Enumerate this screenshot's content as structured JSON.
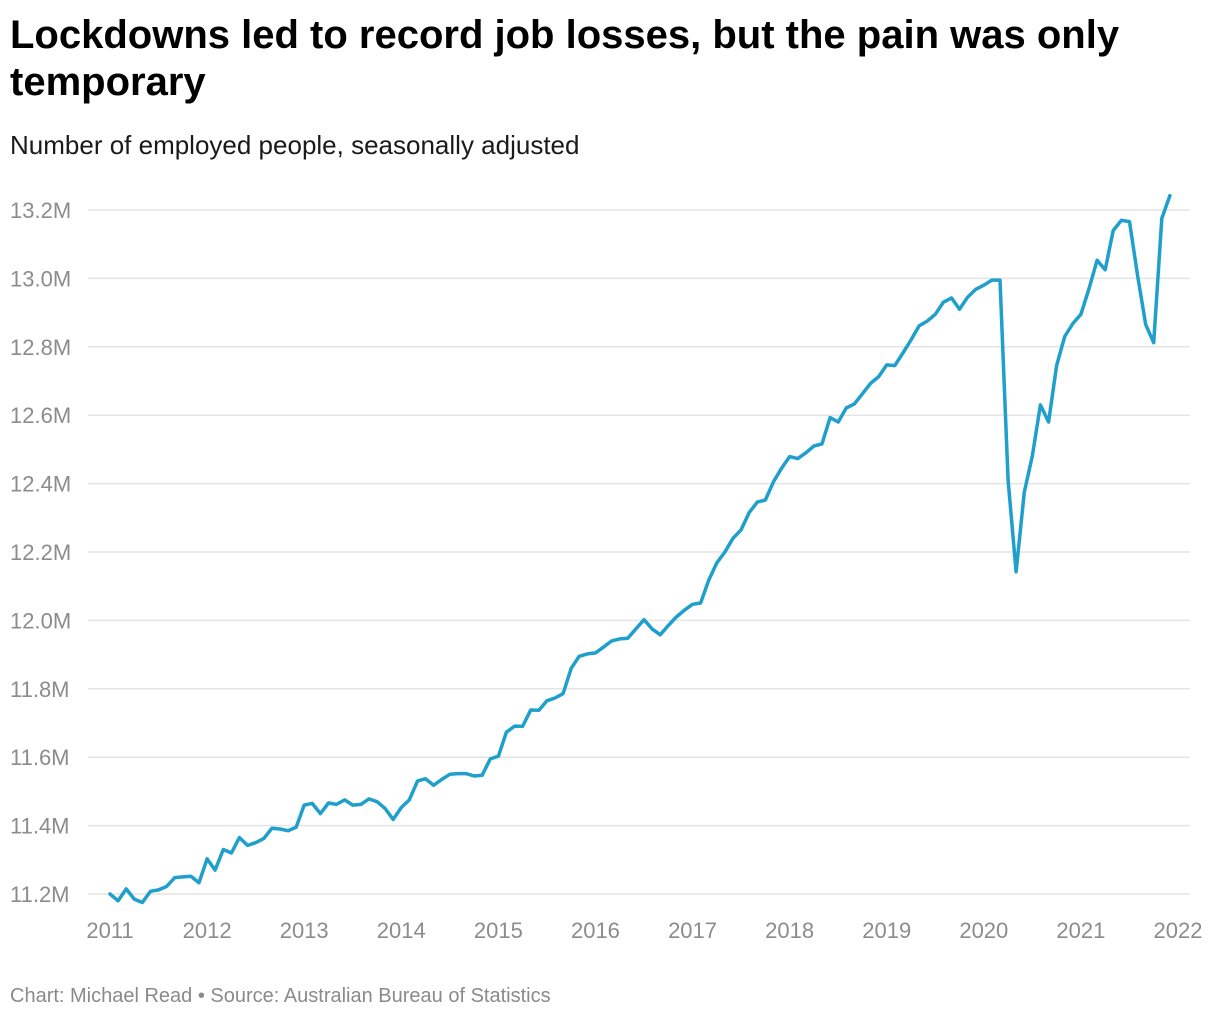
{
  "header": {
    "title": "Lockdowns led to record job losses, but the pain was only temporary",
    "subtitle": "Number of employed people, seasonally adjusted"
  },
  "footer": {
    "text": "Chart: Michael Read • Source: Australian Bureau of Statistics"
  },
  "colors": {
    "line": "#1f9fcb",
    "grid": "#e4e4e4",
    "tick": "#8c8c8c"
  },
  "chart_data": {
    "type": "line",
    "title": "Lockdowns led to record job losses, but the pain was only temporary",
    "subtitle": "Number of employed people, seasonally adjusted",
    "xlabel": "",
    "ylabel": "",
    "unit": "millions of employed people",
    "xlim": [
      2011,
      2022
    ],
    "ylim": [
      11.2,
      13.2
    ],
    "grid": true,
    "x_ticks": [
      {
        "value": 2011,
        "label": "2011"
      },
      {
        "value": 2012,
        "label": "2012"
      },
      {
        "value": 2013,
        "label": "2013"
      },
      {
        "value": 2014,
        "label": "2014"
      },
      {
        "value": 2015,
        "label": "2015"
      },
      {
        "value": 2016,
        "label": "2016"
      },
      {
        "value": 2017,
        "label": "2017"
      },
      {
        "value": 2018,
        "label": "2018"
      },
      {
        "value": 2019,
        "label": "2019"
      },
      {
        "value": 2020,
        "label": "2020"
      },
      {
        "value": 2021,
        "label": "2021"
      },
      {
        "value": 2022,
        "label": "2022"
      }
    ],
    "y_ticks": [
      {
        "value": 11.2,
        "label": "11.2M"
      },
      {
        "value": 11.4,
        "label": "11.4M"
      },
      {
        "value": 11.6,
        "label": "11.6M"
      },
      {
        "value": 11.8,
        "label": "11.8M"
      },
      {
        "value": 12.0,
        "label": "12.0M"
      },
      {
        "value": 12.2,
        "label": "12.2M"
      },
      {
        "value": 12.4,
        "label": "12.4M"
      },
      {
        "value": 12.6,
        "label": "12.6M"
      },
      {
        "value": 12.8,
        "label": "12.8M"
      },
      {
        "value": 13.0,
        "label": "13.0M"
      },
      {
        "value": 13.2,
        "label": "13.2M"
      }
    ],
    "series": [
      {
        "x": [
          2011.0,
          2011.083,
          2011.167,
          2011.25,
          2011.333,
          2011.417,
          2011.5,
          2011.583,
          2011.667,
          2011.75,
          2011.833,
          2011.917,
          2012.0,
          2012.083,
          2012.167,
          2012.25,
          2012.333,
          2012.417,
          2012.5,
          2012.583,
          2012.667,
          2012.75,
          2012.833,
          2012.917,
          2013.0,
          2013.083,
          2013.167,
          2013.25,
          2013.333,
          2013.417,
          2013.5,
          2013.583,
          2013.667,
          2013.75,
          2013.833,
          2013.917,
          2014.0,
          2014.083,
          2014.167,
          2014.25,
          2014.333,
          2014.417,
          2014.5,
          2014.583,
          2014.667,
          2014.75,
          2014.833,
          2014.917,
          2015.0,
          2015.083,
          2015.167,
          2015.25,
          2015.333,
          2015.417,
          2015.5,
          2015.583,
          2015.667,
          2015.75,
          2015.833,
          2015.917,
          2016.0,
          2016.083,
          2016.167,
          2016.25,
          2016.333,
          2016.417,
          2016.5,
          2016.583,
          2016.667,
          2016.75,
          2016.833,
          2016.917,
          2017.0,
          2017.083,
          2017.167,
          2017.25,
          2017.333,
          2017.417,
          2017.5,
          2017.583,
          2017.667,
          2017.75,
          2017.833,
          2017.917,
          2018.0,
          2018.083,
          2018.167,
          2018.25,
          2018.333,
          2018.417,
          2018.5,
          2018.583,
          2018.667,
          2018.75,
          2018.833,
          2018.917,
          2019.0,
          2019.083,
          2019.167,
          2019.25,
          2019.333,
          2019.417,
          2019.5,
          2019.583,
          2019.667,
          2019.75,
          2019.833,
          2019.917,
          2020.0,
          2020.083,
          2020.167,
          2020.25,
          2020.333,
          2020.417,
          2020.5,
          2020.583,
          2020.667,
          2020.75,
          2020.833,
          2020.917,
          2021.0,
          2021.083,
          2021.167,
          2021.25,
          2021.333,
          2021.417,
          2021.5,
          2021.583,
          2021.667,
          2021.75,
          2021.833,
          2021.917
        ],
        "values": [
          11.2,
          11.18,
          11.215,
          11.185,
          11.175,
          11.208,
          11.212,
          11.222,
          11.248,
          11.25,
          11.252,
          11.233,
          11.303,
          11.27,
          11.33,
          11.32,
          11.365,
          11.342,
          11.35,
          11.362,
          11.392,
          11.39,
          11.385,
          11.395,
          11.46,
          11.465,
          11.435,
          11.466,
          11.462,
          11.475,
          11.46,
          11.462,
          11.478,
          11.47,
          11.45,
          11.418,
          11.453,
          11.475,
          11.53,
          11.537,
          11.518,
          11.535,
          11.55,
          11.552,
          11.552,
          11.545,
          11.547,
          11.595,
          11.603,
          11.673,
          11.691,
          11.69,
          11.738,
          11.737,
          11.765,
          11.773,
          11.786,
          11.86,
          11.895,
          11.902,
          11.905,
          11.922,
          11.94,
          11.946,
          11.948,
          11.975,
          12.002,
          11.975,
          11.958,
          11.985,
          12.01,
          12.03,
          12.047,
          12.051,
          12.118,
          12.168,
          12.2,
          12.24,
          12.265,
          12.315,
          12.346,
          12.352,
          12.405,
          12.445,
          12.479,
          12.473,
          12.49,
          12.51,
          12.516,
          12.593,
          12.58,
          12.621,
          12.633,
          12.663,
          12.693,
          12.713,
          12.747,
          12.745,
          12.782,
          12.82,
          12.861,
          12.875,
          12.895,
          12.93,
          12.943,
          12.91,
          12.945,
          12.968,
          12.98,
          12.995,
          12.995,
          12.41,
          12.142,
          12.375,
          12.482,
          12.63,
          12.58,
          12.745,
          12.83,
          12.868,
          12.895,
          12.97,
          13.053,
          13.025,
          13.14,
          13.17,
          13.166,
          13.01,
          12.865,
          12.812,
          13.175,
          13.242
        ]
      }
    ]
  }
}
